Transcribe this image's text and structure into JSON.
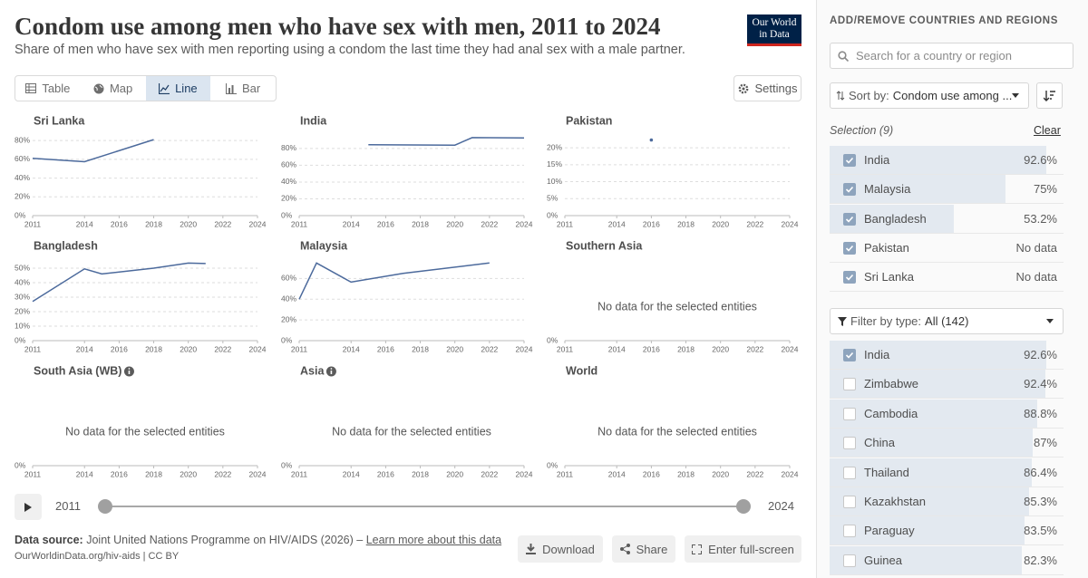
{
  "header": {
    "title": "Condom use among men who have sex with men, 2011 to 2024",
    "subtitle": "Share of men who have sex with men reporting using a condom the last time they had anal sex with a male partner.",
    "logo": [
      "Our World",
      "in Data"
    ]
  },
  "controls": {
    "tabs": [
      "Table",
      "Map",
      "Line",
      "Bar"
    ],
    "active_tab": "Line",
    "settings": "Settings"
  },
  "chart_data": [
    {
      "type": "line",
      "title": "Sri Lanka",
      "color": "#4c6a9c",
      "grid": true,
      "x": [
        2011,
        2014,
        2018
      ],
      "values": [
        61,
        57.5,
        81
      ],
      "xlim": [
        2011,
        2024
      ],
      "xticks": [
        2011,
        2014,
        2016,
        2018,
        2020,
        2022,
        2024
      ],
      "ylim": [
        0,
        85
      ],
      "yticks": [
        {
          "value": 0,
          "label": "0%"
        },
        {
          "value": 20,
          "label": "20%"
        },
        {
          "value": 40,
          "label": "40%"
        },
        {
          "value": 60,
          "label": "60%"
        },
        {
          "value": 80,
          "label": "80%"
        }
      ]
    },
    {
      "type": "line",
      "title": "India",
      "color": "#4c6a9c",
      "grid": true,
      "x": [
        2015,
        2020,
        2021,
        2024
      ],
      "values": [
        84.5,
        84,
        93,
        92.6
      ],
      "xlim": [
        2011,
        2024
      ],
      "xticks": [
        2011,
        2014,
        2016,
        2018,
        2020,
        2022,
        2024
      ],
      "ylim": [
        0,
        95
      ],
      "yticks": [
        {
          "value": 0,
          "label": "0%"
        },
        {
          "value": 20,
          "label": "20%"
        },
        {
          "value": 40,
          "label": "40%"
        },
        {
          "value": 60,
          "label": "60%"
        },
        {
          "value": 80,
          "label": "80%"
        }
      ]
    },
    {
      "type": "line",
      "title": "Pakistan",
      "color": "#4c6a9c",
      "grid": true,
      "x": [
        2016
      ],
      "values": [
        22.3
      ],
      "xlim": [
        2011,
        2024
      ],
      "xticks": [
        2011,
        2014,
        2016,
        2018,
        2020,
        2022,
        2024
      ],
      "ylim": [
        0,
        23.5
      ],
      "yticks": [
        {
          "value": 0,
          "label": "0%"
        },
        {
          "value": 5,
          "label": "5%"
        },
        {
          "value": 10,
          "label": "10%"
        },
        {
          "value": 15,
          "label": "15%"
        },
        {
          "value": 20,
          "label": "20%"
        }
      ]
    },
    {
      "type": "line",
      "title": "Bangladesh",
      "color": "#4c6a9c",
      "grid": true,
      "x": [
        2011,
        2014,
        2015,
        2018,
        2020,
        2021
      ],
      "values": [
        27,
        49.5,
        46,
        50,
        53.5,
        53.2
      ],
      "xlim": [
        2011,
        2024
      ],
      "xticks": [
        2011,
        2014,
        2016,
        2018,
        2020,
        2022,
        2024
      ],
      "ylim": [
        0,
        55
      ],
      "yticks": [
        {
          "value": 0,
          "label": "0%"
        },
        {
          "value": 10,
          "label": "10%"
        },
        {
          "value": 20,
          "label": "20%"
        },
        {
          "value": 30,
          "label": "30%"
        },
        {
          "value": 40,
          "label": "40%"
        },
        {
          "value": 50,
          "label": "50%"
        }
      ]
    },
    {
      "type": "line",
      "title": "Malaysia",
      "color": "#4c6a9c",
      "grid": true,
      "x": [
        2011,
        2012,
        2014,
        2017,
        2022
      ],
      "values": [
        40,
        75,
        56.5,
        65,
        75
      ],
      "xlim": [
        2011,
        2024
      ],
      "xticks": [
        2011,
        2014,
        2016,
        2018,
        2020,
        2022,
        2024
      ],
      "ylim": [
        0,
        77
      ],
      "yticks": [
        {
          "value": 0,
          "label": "0%"
        },
        {
          "value": 20,
          "label": "20%"
        },
        {
          "value": 40,
          "label": "40%"
        },
        {
          "value": 60,
          "label": "60%"
        }
      ]
    },
    {
      "type": "line",
      "title": "Southern Asia",
      "note": "No data for the selected entities",
      "grid": true,
      "xlim": [
        2011,
        2024
      ],
      "xticks": [
        2011,
        2014,
        2016,
        2018,
        2020,
        2022,
        2024
      ],
      "yticks": [
        {
          "value": 0,
          "label": "0%"
        }
      ]
    },
    {
      "type": "line",
      "title": "South Asia (WB)",
      "info_icon": true,
      "note": "No data for the selected entities",
      "grid": true,
      "xlim": [
        2011,
        2024
      ],
      "xticks": [
        2011,
        2014,
        2016,
        2018,
        2020,
        2022,
        2024
      ],
      "yticks": [
        {
          "value": 0,
          "label": "0%"
        }
      ]
    },
    {
      "type": "line",
      "title": "Asia",
      "info_icon": true,
      "note": "No data for the selected entities",
      "grid": true,
      "xlim": [
        2011,
        2024
      ],
      "xticks": [
        2011,
        2014,
        2016,
        2018,
        2020,
        2022,
        2024
      ],
      "yticks": [
        {
          "value": 0,
          "label": "0%"
        }
      ]
    },
    {
      "type": "line",
      "title": "World",
      "note": "No data for the selected entities",
      "grid": true,
      "xlim": [
        2011,
        2024
      ],
      "xticks": [
        2011,
        2014,
        2016,
        2018,
        2020,
        2022,
        2024
      ],
      "yticks": [
        {
          "value": 0,
          "label": "0%"
        }
      ]
    }
  ],
  "timeline": {
    "start": 2011,
    "end": 2024
  },
  "footer": {
    "source_label": "Data source:",
    "source": "Joint United Nations Programme on HIV/AIDS (2026) –",
    "learn_more": "Learn more about this data",
    "url": "OurWorldinData.org/hiv-aids | CC BY",
    "buttons": [
      "Download",
      "Share",
      "Enter full-screen"
    ]
  },
  "sidebar": {
    "heading": "ADD/REMOVE COUNTRIES AND REGIONS",
    "search_placeholder": "Search for a country or region",
    "sort_label": "Sort by:",
    "sort_value": "Condom use among ...",
    "selection_label": "Selection (9)",
    "clear": "Clear",
    "selected": [
      {
        "name": "India",
        "value": 92.6,
        "value_label": "92.6%"
      },
      {
        "name": "Malaysia",
        "value": 75,
        "value_label": "75%"
      },
      {
        "name": "Bangladesh",
        "value": 53.2,
        "value_label": "53.2%"
      },
      {
        "name": "Pakistan",
        "value": null,
        "value_label": "No data"
      },
      {
        "name": "Sri Lanka",
        "value": null,
        "value_label": "No data"
      }
    ],
    "filter_label": "Filter by type:",
    "filter_value": "All (142)",
    "list": [
      {
        "name": "India",
        "value": 92.6,
        "value_label": "92.6%",
        "checked": true
      },
      {
        "name": "Zimbabwe",
        "value": 92.4,
        "value_label": "92.4%",
        "checked": false
      },
      {
        "name": "Cambodia",
        "value": 88.8,
        "value_label": "88.8%",
        "checked": false
      },
      {
        "name": "China",
        "value": 87,
        "value_label": "87%",
        "checked": false
      },
      {
        "name": "Thailand",
        "value": 86.4,
        "value_label": "86.4%",
        "checked": false
      },
      {
        "name": "Kazakhstan",
        "value": 85.3,
        "value_label": "85.3%",
        "checked": false
      },
      {
        "name": "Paraguay",
        "value": 83.5,
        "value_label": "83.5%",
        "checked": false
      },
      {
        "name": "Guinea",
        "value": 82.3,
        "value_label": "82.3%",
        "checked": false
      }
    ]
  }
}
